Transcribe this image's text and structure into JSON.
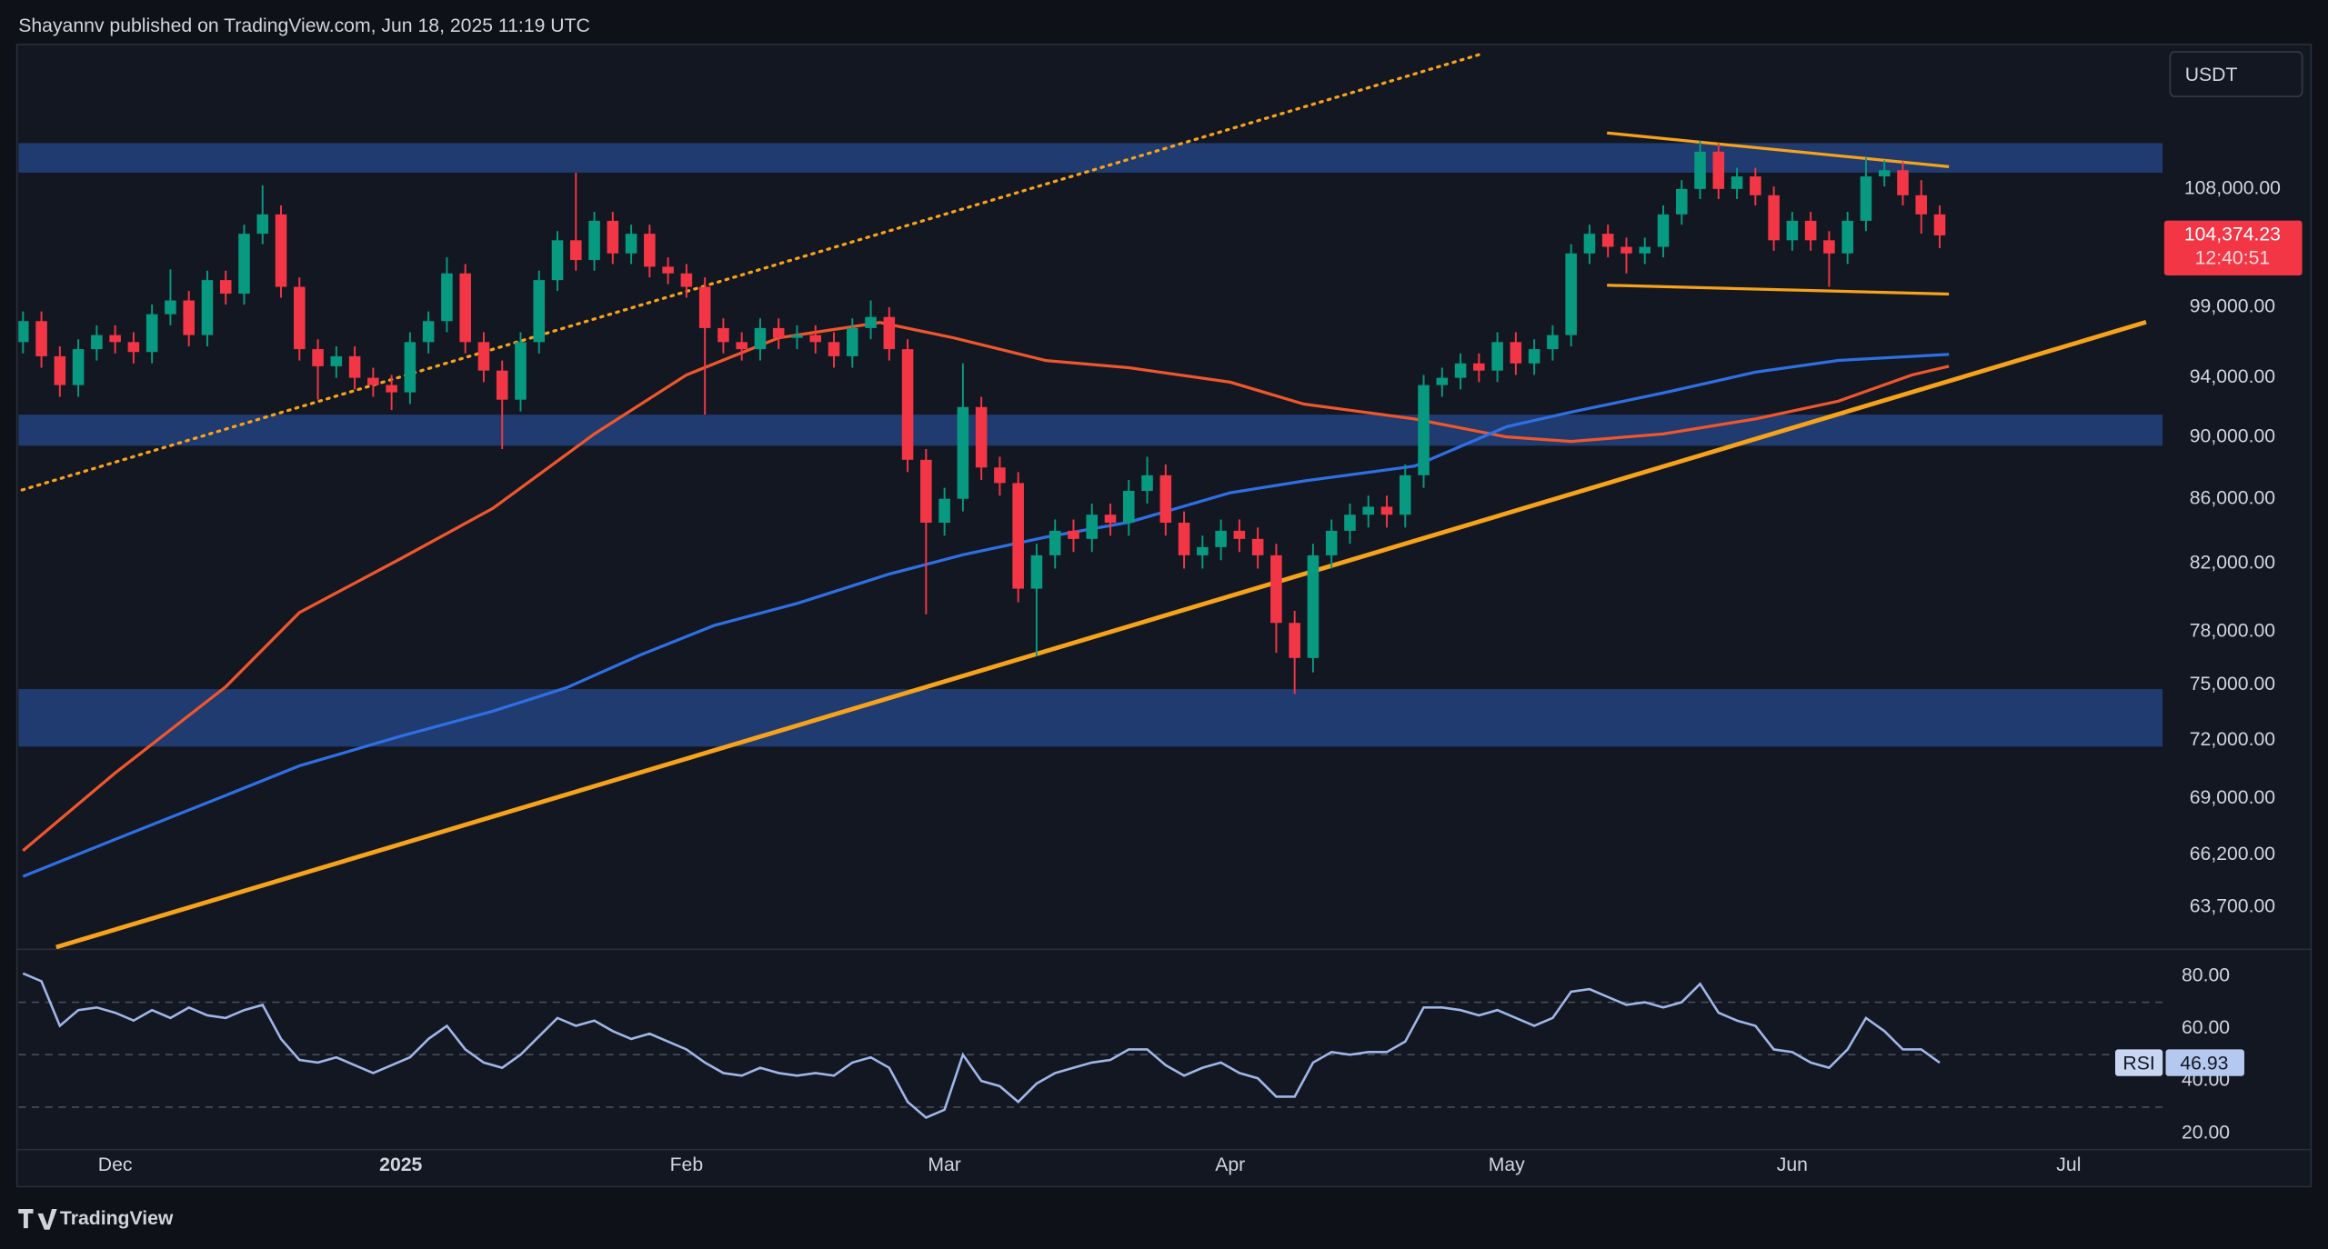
{
  "header": {
    "byline": "Shayannv published on TradingView.com, Jun 18, 2025 11:19 UTC"
  },
  "footer": {
    "brand": "TradingView"
  },
  "chart_data": [
    {
      "type": "candlestick",
      "currency": "USDT",
      "log": true,
      "grid": false,
      "up_color": "#089981",
      "down_color": "#f23645",
      "xlim": [
        -10.5,
        222.2
      ],
      "xticks": [
        {
          "value": 0,
          "label": "Dec"
        },
        {
          "value": 31,
          "label": "2025"
        },
        {
          "value": 62,
          "label": "Feb"
        },
        {
          "value": 90,
          "label": "Mar"
        },
        {
          "value": 121,
          "label": "Apr"
        },
        {
          "value": 151,
          "label": "May"
        },
        {
          "value": 182,
          "label": "Jun"
        },
        {
          "value": 212,
          "label": "Jul"
        }
      ],
      "ylim": [
        61750,
        120100
      ],
      "yticks": [
        {
          "value": 108000,
          "label": "108,000.00"
        },
        {
          "value": 99000,
          "label": "99,000.00"
        },
        {
          "value": 94000,
          "label": "94,000.00"
        },
        {
          "value": 90000,
          "label": "90,000.00"
        },
        {
          "value": 86000,
          "label": "86,000.00"
        },
        {
          "value": 82000,
          "label": "82,000.00"
        },
        {
          "value": 78000,
          "label": "78,000.00"
        },
        {
          "value": 75000,
          "label": "75,000.00"
        },
        {
          "value": 72000,
          "label": "72,000.00"
        },
        {
          "value": 69000,
          "label": "69,000.00"
        },
        {
          "value": 66200,
          "label": "66,200.00"
        },
        {
          "value": 63700,
          "label": "63,700.00"
        }
      ],
      "x": [
        -10,
        -8,
        -6,
        -4,
        -2,
        0,
        2,
        4,
        6,
        8,
        10,
        12,
        14,
        16,
        18,
        20,
        22,
        24,
        26,
        28,
        30,
        32,
        34,
        36,
        38,
        40,
        42,
        44,
        46,
        48,
        50,
        52,
        54,
        56,
        58,
        60,
        62,
        64,
        66,
        68,
        70,
        72,
        74,
        76,
        78,
        80,
        82,
        84,
        86,
        88,
        90,
        92,
        94,
        96,
        98,
        100,
        102,
        104,
        106,
        108,
        110,
        112,
        114,
        116,
        118,
        120,
        122,
        124,
        126,
        128,
        130,
        132,
        134,
        136,
        138,
        140,
        142,
        144,
        146,
        148,
        150,
        152,
        154,
        156,
        158,
        160,
        162,
        164,
        166,
        168,
        170,
        172,
        174,
        176,
        178,
        180,
        182,
        184,
        186,
        188,
        190,
        192,
        194,
        196,
        198
      ],
      "open": [
        96500,
        98000,
        95500,
        93500,
        96000,
        97000,
        96500,
        95800,
        98500,
        99500,
        97000,
        101000,
        100000,
        104500,
        106000,
        100500,
        96000,
        94800,
        95500,
        94000,
        93500,
        93000,
        96500,
        98000,
        101500,
        96500,
        94500,
        92500,
        96500,
        101000,
        104000,
        102500,
        105500,
        103000,
        104500,
        102000,
        101500,
        100500,
        97500,
        96500,
        96000,
        97500,
        96800,
        97000,
        96500,
        95500,
        97500,
        98300,
        96000,
        88500,
        84500,
        86000,
        92000,
        88000,
        87000,
        80500,
        82500,
        84000,
        83500,
        85000,
        84500,
        86500,
        87500,
        84500,
        82500,
        83000,
        84000,
        83500,
        82500,
        78500,
        76500,
        82500,
        84000,
        85000,
        85500,
        85000,
        87500,
        93500,
        94000,
        95000,
        94500,
        96500,
        95000,
        96000,
        97000,
        103000,
        104500,
        103500,
        103000,
        103500,
        106000,
        108000,
        111000,
        108000,
        109000,
        107500,
        104000,
        105500,
        104000,
        103000,
        105500,
        109000,
        109500,
        107500,
        106000
      ],
      "high": [
        98700,
        98700,
        96200,
        96700,
        97700,
        97700,
        97200,
        99200,
        101800,
        100200,
        101700,
        101700,
        105200,
        108300,
        106700,
        101200,
        96700,
        96200,
        96200,
        94700,
        94200,
        97200,
        98700,
        102700,
        102200,
        97200,
        95200,
        97200,
        101700,
        104700,
        109300,
        106200,
        106200,
        105200,
        105200,
        102700,
        102200,
        101200,
        98200,
        97200,
        98200,
        98200,
        97700,
        97700,
        97200,
        98200,
        99500,
        99000,
        96700,
        89200,
        86700,
        95000,
        92700,
        88700,
        87700,
        83200,
        84700,
        84700,
        85700,
        85700,
        87200,
        88700,
        88200,
        85200,
        83700,
        84700,
        84700,
        84200,
        83200,
        79200,
        83200,
        84700,
        85700,
        86200,
        86200,
        88200,
        94200,
        94700,
        95700,
        95700,
        97200,
        97200,
        96700,
        97700,
        103700,
        105200,
        105200,
        104200,
        104200,
        106700,
        108700,
        111900,
        111700,
        109700,
        109700,
        108200,
        106200,
        106200,
        104700,
        106200,
        110500,
        110300,
        110200,
        108700,
        106700
      ],
      "low": [
        95700,
        94700,
        92700,
        92700,
        95200,
        95700,
        95000,
        95000,
        97700,
        96200,
        96200,
        99200,
        99200,
        103700,
        99700,
        95200,
        92500,
        94000,
        93200,
        92700,
        91800,
        92200,
        95700,
        97200,
        95700,
        93700,
        89200,
        91700,
        95700,
        100200,
        101700,
        101700,
        102200,
        102200,
        101200,
        100700,
        99700,
        91500,
        95700,
        95200,
        95200,
        96000,
        96000,
        95700,
        94700,
        94700,
        96700,
        95200,
        87700,
        79000,
        83700,
        85200,
        87200,
        86200,
        79700,
        76600,
        81700,
        82700,
        82700,
        83700,
        83700,
        85700,
        83700,
        81700,
        81700,
        82200,
        82700,
        81700,
        76800,
        74500,
        75700,
        81700,
        83200,
        84200,
        84200,
        84200,
        86700,
        92700,
        93200,
        93700,
        93700,
        94200,
        94200,
        95200,
        96200,
        102200,
        102700,
        101500,
        102200,
        102700,
        105200,
        107200,
        107200,
        107200,
        106700,
        103200,
        103200,
        103200,
        100500,
        102200,
        104700,
        108200,
        106700,
        104500,
        103400
      ],
      "close": [
        98000,
        95500,
        93500,
        96000,
        97000,
        96500,
        95800,
        98500,
        99500,
        97000,
        101000,
        100000,
        104500,
        106000,
        100500,
        96000,
        94800,
        95500,
        94000,
        93500,
        93000,
        96500,
        98000,
        101500,
        96500,
        94500,
        92500,
        96500,
        101000,
        104000,
        102500,
        105500,
        103000,
        104500,
        102000,
        101500,
        100500,
        97500,
        96500,
        96000,
        97500,
        96800,
        97000,
        96500,
        95500,
        97500,
        98300,
        96000,
        88500,
        84500,
        86000,
        92000,
        88000,
        87000,
        80500,
        82500,
        84000,
        83500,
        85000,
        84500,
        86500,
        87500,
        84500,
        82500,
        83000,
        84000,
        83500,
        82500,
        78500,
        76500,
        82500,
        84000,
        85000,
        85500,
        85000,
        87500,
        93500,
        94000,
        95000,
        94500,
        96500,
        95000,
        96000,
        97000,
        103000,
        104500,
        103500,
        103000,
        103500,
        106000,
        108000,
        111000,
        108000,
        109000,
        107500,
        104000,
        105500,
        104000,
        103000,
        105500,
        109000,
        109500,
        107500,
        106000,
        104374.23
      ],
      "last_price_label": "104,374.23",
      "countdown": "12:40:51",
      "lines": [
        {
          "color": "#f0562c",
          "x": [
            -10,
            0,
            12,
            20,
            31,
            41,
            52,
            62,
            72,
            83,
            91,
            101,
            110,
            121,
            129,
            141,
            151,
            158,
            168,
            178,
            187,
            195,
            199
          ],
          "values": [
            66400,
            70300,
            74900,
            79100,
            82300,
            85400,
            90200,
            94200,
            96800,
            97900,
            96800,
            95200,
            94700,
            93700,
            92200,
            91200,
            90000,
            89700,
            90200,
            91200,
            92400,
            94200,
            94800
          ]
        },
        {
          "color": "#2f6fe4",
          "x": [
            -10,
            0,
            12,
            20,
            31,
            41,
            49,
            57,
            65,
            74,
            84,
            92,
            101,
            110,
            121,
            129,
            141,
            151,
            158,
            168,
            178,
            187,
            199
          ],
          "values": [
            65150,
            66950,
            69150,
            70670,
            72230,
            73570,
            74850,
            76670,
            78350,
            79630,
            81370,
            82530,
            83610,
            84530,
            86380,
            87130,
            88090,
            90680,
            91660,
            92960,
            94390,
            95210,
            95630
          ]
        }
      ],
      "zone_color": "#213f78",
      "zones": [
        {
          "from": 109300,
          "to": 111700
        },
        {
          "from": 89420,
          "to": 91490
        },
        {
          "from": 71680,
          "to": 74770
        }
      ],
      "trend_lines": [
        {
          "style": "thick",
          "color": "#f7a21b",
          "x": [
            -6.4,
            220.4
          ],
          "values": [
            61850,
            97930
          ]
        },
        {
          "style": "dotted",
          "color": "#f7a21b",
          "x": [
            -10.1,
            148.4
          ],
          "values": [
            86560,
            119300
          ]
        },
        {
          "style": "thin",
          "color": "#f7a21b",
          "x": [
            161.9,
            199
          ],
          "values": [
            112540,
            109780
          ]
        },
        {
          "style": "thin",
          "color": "#f7a21b",
          "x": [
            161.9,
            199
          ],
          "values": [
            100620,
            99970
          ]
        }
      ]
    },
    {
      "type": "line",
      "name": "RSI",
      "color": "#9fb6e8",
      "xlim": [
        -10.5,
        222.2
      ],
      "ylim": [
        13.8,
        89.6
      ],
      "yticks": [
        {
          "value": 80,
          "label": "80.00"
        },
        {
          "value": 60,
          "label": "60.00"
        },
        {
          "value": 40,
          "label": "40.00"
        },
        {
          "value": 20,
          "label": "20.00"
        }
      ],
      "levels": [
        70,
        50,
        30
      ],
      "x": [
        -10,
        -8,
        -6,
        -4,
        -2,
        0,
        2,
        4,
        6,
        8,
        10,
        12,
        14,
        16,
        18,
        20,
        22,
        24,
        26,
        28,
        30,
        32,
        34,
        36,
        38,
        40,
        42,
        44,
        46,
        48,
        50,
        52,
        54,
        56,
        58,
        60,
        62,
        64,
        66,
        68,
        70,
        72,
        74,
        76,
        78,
        80,
        82,
        84,
        86,
        88,
        90,
        92,
        94,
        96,
        98,
        100,
        102,
        104,
        106,
        108,
        110,
        112,
        114,
        116,
        118,
        120,
        122,
        124,
        126,
        128,
        130,
        132,
        134,
        136,
        138,
        140,
        142,
        144,
        146,
        148,
        150,
        152,
        154,
        156,
        158,
        160,
        162,
        164,
        166,
        168,
        170,
        172,
        174,
        176,
        178,
        180,
        182,
        184,
        186,
        188,
        190,
        192,
        194,
        196,
        198
      ],
      "values": [
        81,
        78,
        61,
        67,
        68,
        66,
        63,
        67,
        64,
        68,
        65,
        64,
        67,
        69,
        56,
        48,
        47,
        49,
        46,
        43,
        46,
        49,
        56,
        61,
        52,
        47,
        45,
        50,
        57,
        64,
        61,
        63,
        59,
        56,
        58,
        55,
        52,
        47,
        43,
        42,
        45,
        43,
        42,
        43,
        42,
        47,
        49,
        45,
        32,
        26,
        29,
        50,
        40,
        38,
        32,
        39,
        43,
        45,
        47,
        48,
        52,
        52,
        46,
        42,
        45,
        47,
        43,
        41,
        34,
        34,
        47,
        51,
        50,
        51,
        51,
        55,
        68,
        68,
        67,
        65,
        67,
        64,
        61,
        64,
        74,
        75,
        72,
        69,
        70,
        68,
        70,
        77,
        66,
        63,
        61,
        52,
        51,
        47,
        45,
        52,
        64,
        59,
        52,
        52,
        46.93
      ]
    }
  ]
}
